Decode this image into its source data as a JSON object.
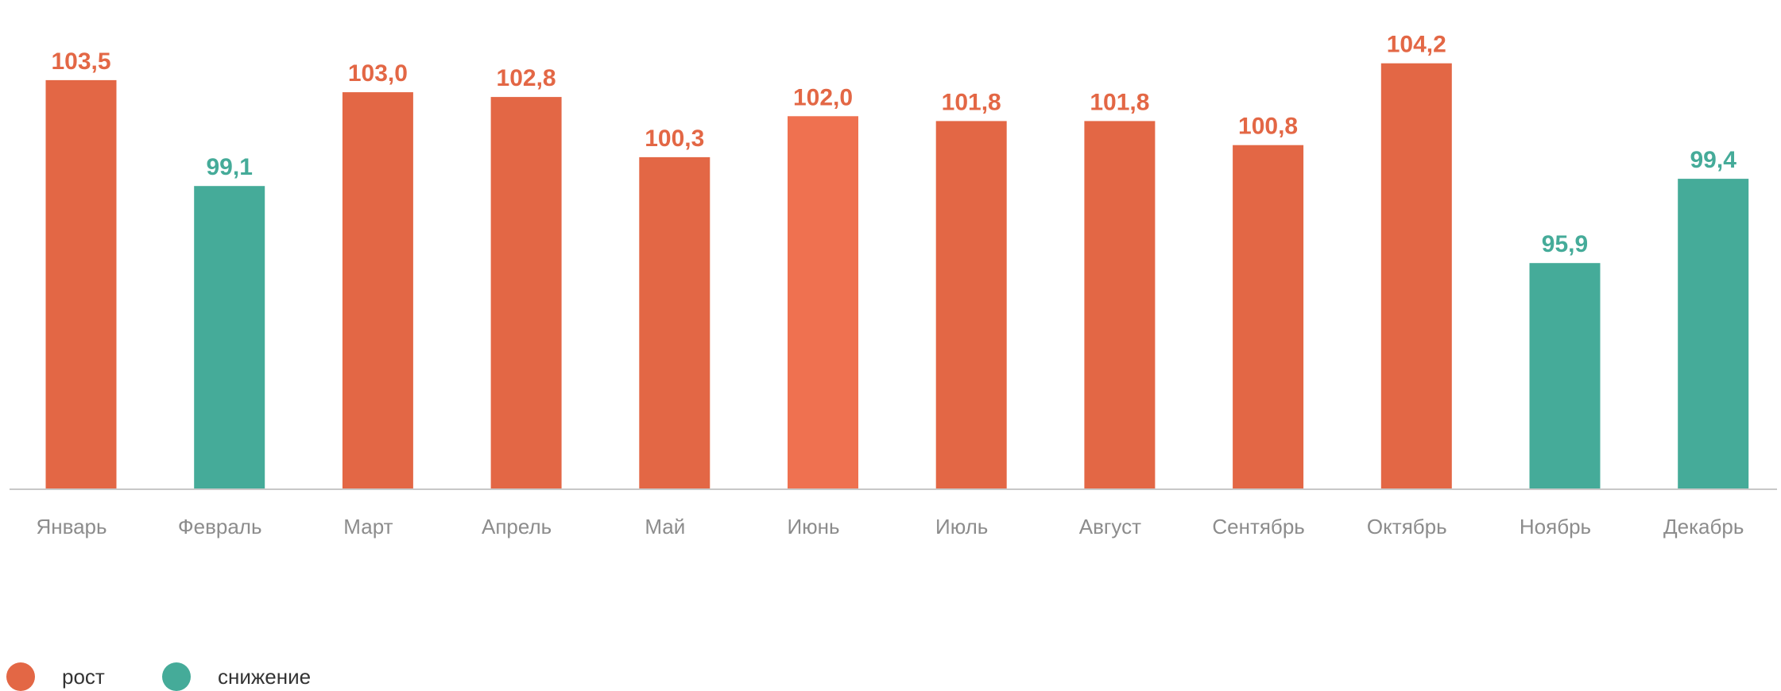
{
  "chart_data": {
    "type": "bar",
    "categories": [
      "Январь",
      "Февраль",
      "Март",
      "Апрель",
      "Май",
      "Июнь",
      "Июль",
      "Август",
      "Сентябрь",
      "Октябрь",
      "Ноябрь",
      "Декабрь"
    ],
    "values": [
      103.5,
      99.1,
      103.0,
      102.8,
      100.3,
      102.0,
      101.8,
      101.8,
      100.8,
      104.2,
      95.9,
      99.4
    ],
    "value_labels": [
      "103,5",
      "99,1",
      "103,0",
      "102,8",
      "100,3",
      "102,0",
      "101,8",
      "101,8",
      "100,8",
      "104,2",
      "95,9",
      "99,4"
    ],
    "bar_groups": [
      "рост",
      "снижение",
      "рост",
      "рост",
      "рост",
      "рост",
      "рост",
      "рост",
      "рост",
      "рост",
      "снижение",
      "снижение"
    ],
    "ylim": [
      86.5,
      105.0
    ],
    "grid": false,
    "legend_position": "bottom-left",
    "title": "",
    "xlabel": "",
    "ylabel": ""
  },
  "legend": {
    "items": [
      {
        "label": "рост",
        "color": "#e36745"
      },
      {
        "label": "снижение",
        "color": "#45ab99"
      }
    ]
  },
  "colors": {
    "growth": "#e36745",
    "growth_highlight": "#ef7150",
    "decline": "#45ab99",
    "axis": "#c8c8c8",
    "tick_text": "#8c8c8c"
  },
  "highlighted_category": "Июнь"
}
